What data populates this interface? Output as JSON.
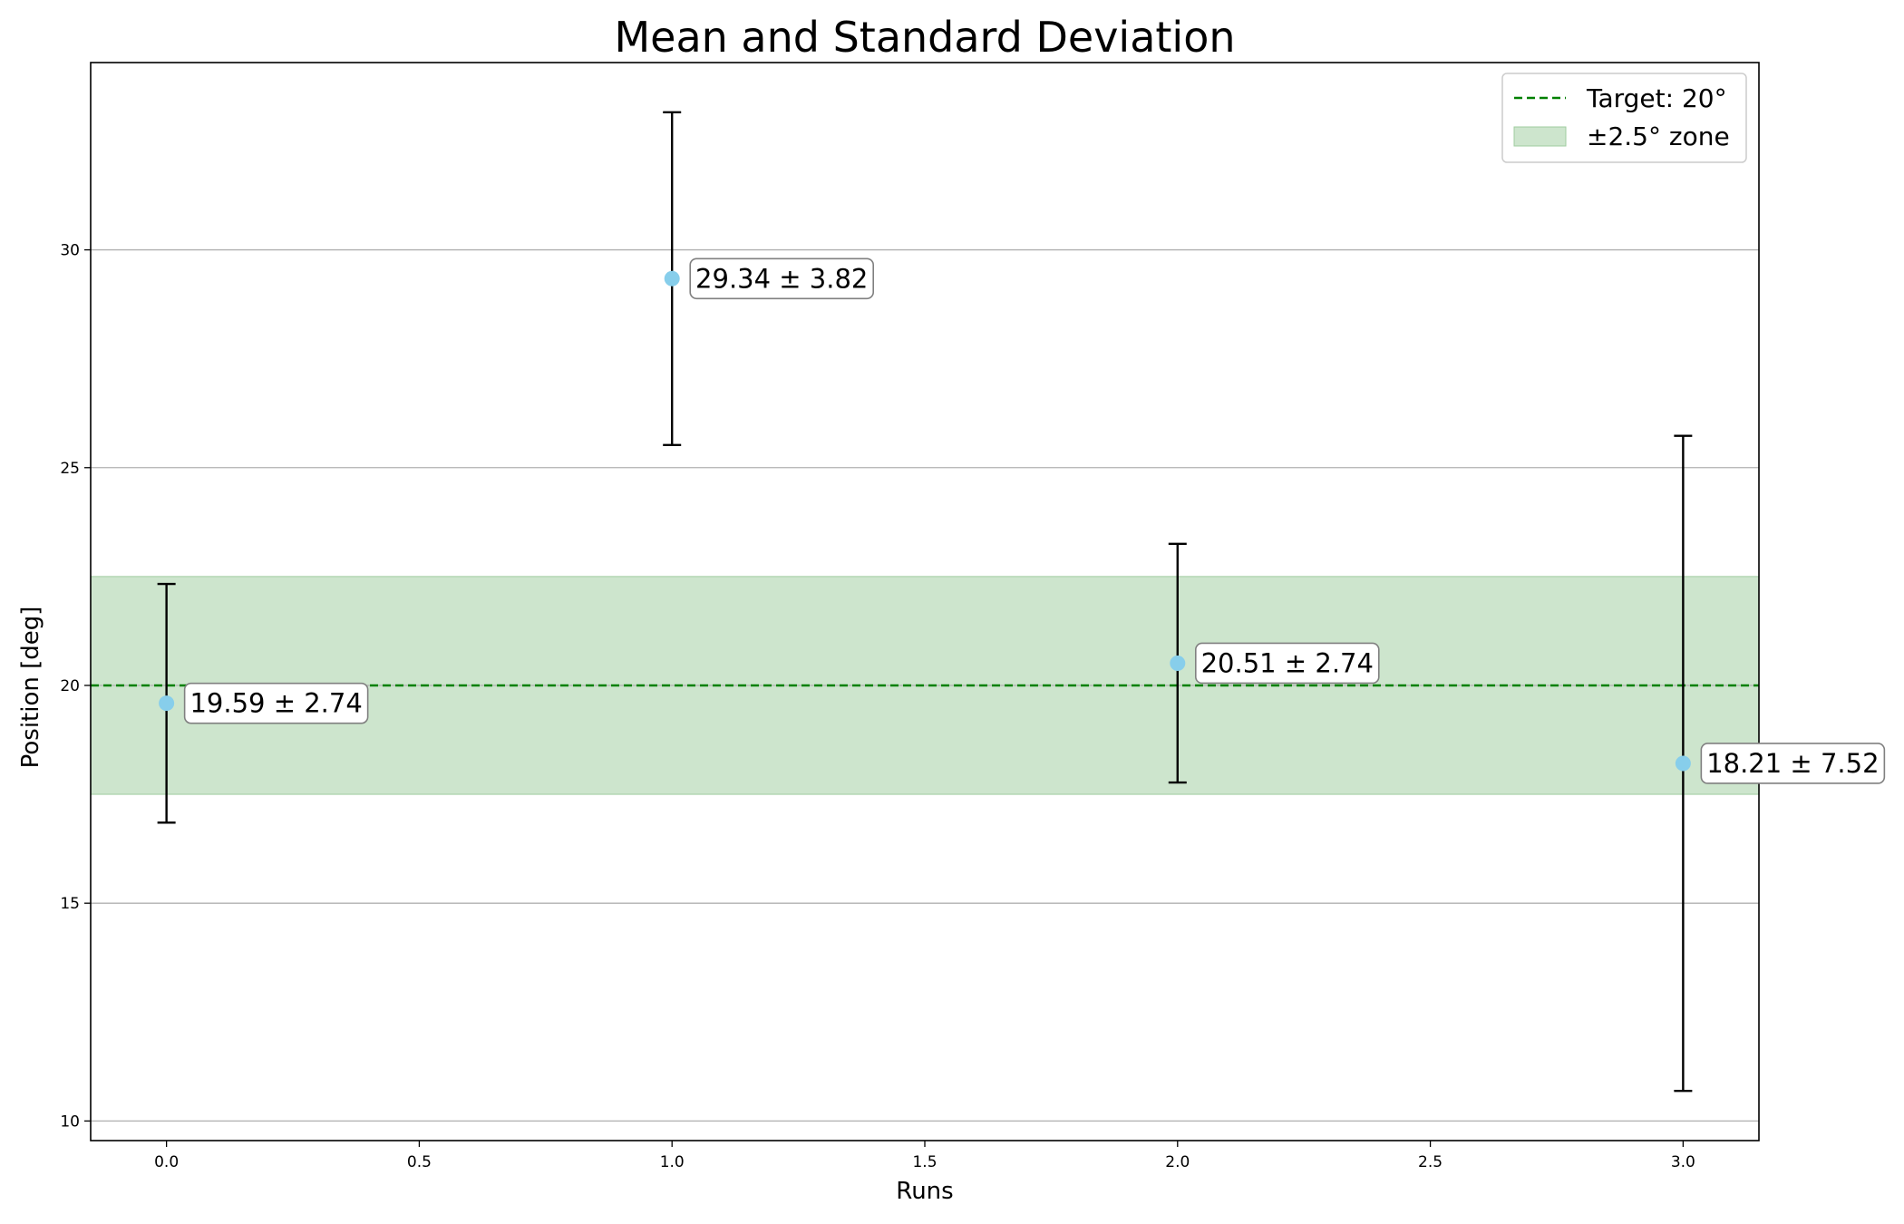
{
  "chart_data": {
    "type": "scatter",
    "title": "Mean and Standard Deviation",
    "xlabel": "Runs",
    "ylabel": "Position [deg]",
    "xlim": [
      -0.15,
      3.15
    ],
    "ylim": [
      9.55,
      34.3
    ],
    "xticks": [
      0.0,
      0.5,
      1.0,
      1.5,
      2.0,
      2.5,
      3.0
    ],
    "xtick_labels": [
      "0.0",
      "0.5",
      "1.0",
      "1.5",
      "2.0",
      "2.5",
      "3.0"
    ],
    "yticks": [
      10,
      15,
      20,
      25,
      30
    ],
    "ytick_labels": [
      "10",
      "15",
      "20",
      "25",
      "30"
    ],
    "grid": "y",
    "points": [
      {
        "x": 0,
        "mean": 19.59,
        "std": 2.74,
        "label": "19.59 ± 2.74"
      },
      {
        "x": 1,
        "mean": 29.34,
        "std": 3.82,
        "label": "29.34 ± 3.82"
      },
      {
        "x": 2,
        "mean": 20.51,
        "std": 2.74,
        "label": "20.51 ± 2.74"
      },
      {
        "x": 3,
        "mean": 18.21,
        "std": 7.52,
        "label": "18.21 ± 7.52"
      }
    ],
    "target": {
      "value": 20,
      "label": "Target: 20°",
      "color": "#008000"
    },
    "zone": {
      "low": 17.5,
      "high": 22.5,
      "label": "±2.5° zone",
      "color": "#cde5cd"
    },
    "marker_color": "#87ceeb",
    "errorbar_color": "#000000",
    "legend_position": "upper right"
  }
}
